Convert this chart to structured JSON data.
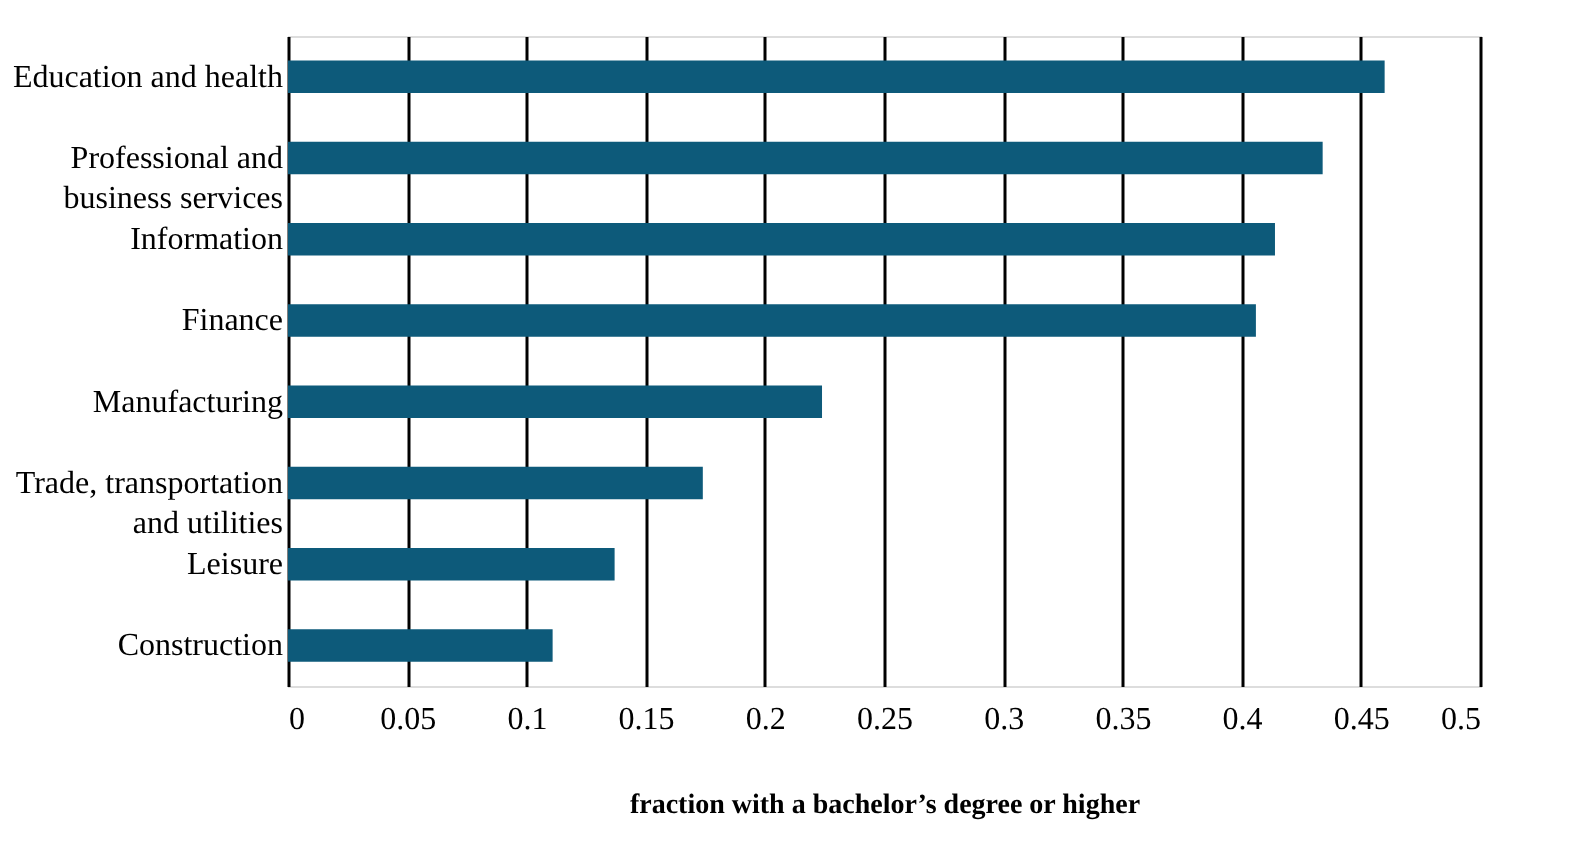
{
  "chart_data": {
    "type": "bar",
    "orientation": "horizontal",
    "xlabel": "fraction with a bachelor’s degree or higher",
    "categories": [
      "Education and health",
      "Professional and\nbusiness services",
      "Information",
      "Finance",
      "Manufacturing",
      "Trade, transportation\nand utilities",
      "Leisure",
      "Construction"
    ],
    "values": [
      0.46,
      0.434,
      0.414,
      0.406,
      0.224,
      0.174,
      0.137,
      0.111
    ],
    "color": "#0d5a7a",
    "xlim": [
      0,
      0.5
    ],
    "xticks": [
      0,
      0.05,
      0.1,
      0.15,
      0.2,
      0.25,
      0.3,
      0.35,
      0.4,
      0.45,
      0.5
    ],
    "grid": "x"
  }
}
